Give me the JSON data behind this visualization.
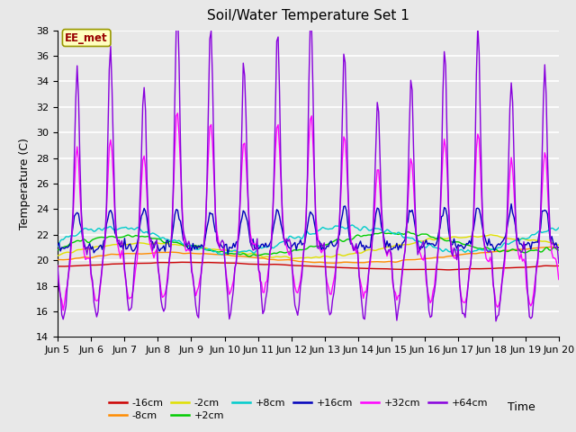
{
  "title": "Soil/Water Temperature Set 1",
  "ylabel": "Temperature (C)",
  "xlabel": "Time",
  "annotation_text": "EE_met",
  "ylim": [
    14,
    38
  ],
  "yticks": [
    14,
    16,
    18,
    20,
    22,
    24,
    26,
    28,
    30,
    32,
    34,
    36,
    38
  ],
  "xtick_labels": [
    "Jun 5",
    "Jun 6",
    "Jun 7",
    "Jun 8",
    "Jun 9",
    "Jun 10",
    "Jun 11",
    "Jun 12",
    "Jun 13",
    "Jun 14",
    "Jun 15",
    "Jun 16",
    "Jun 17",
    "Jun 18",
    "Jun 19",
    "Jun 20"
  ],
  "bg_color": "#dcdcdc",
  "plot_bg_color": "#e8e8e8",
  "grid_color": "#ffffff",
  "series_colors": {
    "-16cm": "#cc0000",
    "-8cm": "#ff8c00",
    "-2cm": "#e0e000",
    "+2cm": "#00cc00",
    "+8cm": "#00cccc",
    "+16cm": "#0000bb",
    "+32cm": "#ff00ff",
    "+64cm": "#8800dd"
  },
  "legend_entries": [
    "-16cm",
    "-8cm",
    "-2cm",
    "+2cm",
    "+8cm",
    "+16cm",
    "+32cm",
    "+64cm"
  ]
}
